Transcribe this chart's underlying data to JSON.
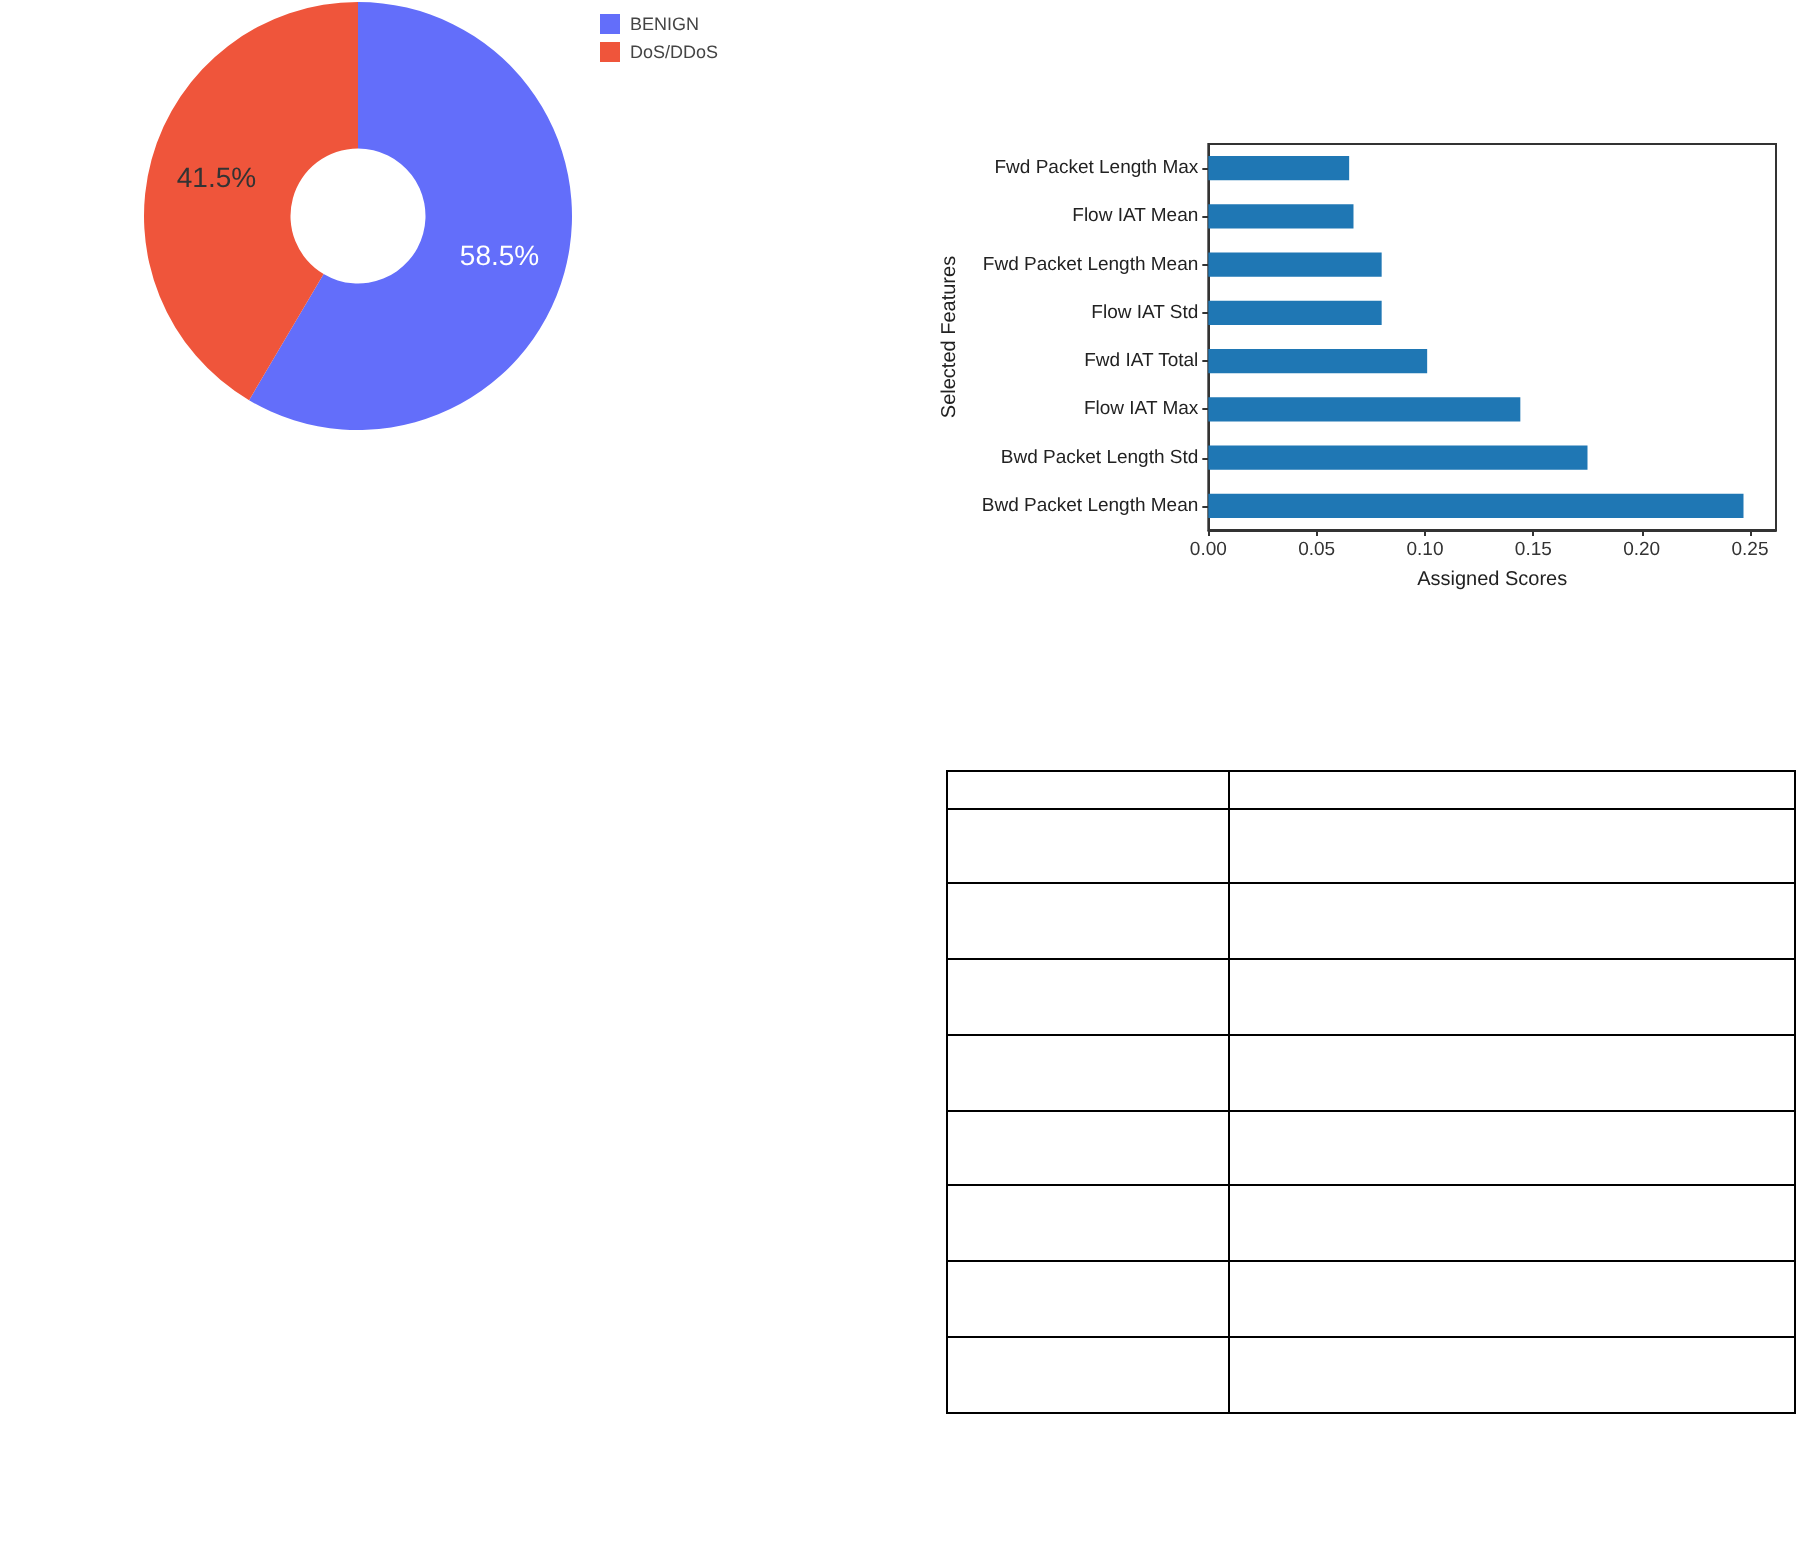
{
  "chart_data": [
    {
      "type": "donut",
      "categories": [
        "BENIGN",
        "DoS/DDoS"
      ],
      "values": [
        58.5,
        41.5
      ],
      "colors": [
        "#636efa",
        "#ef553b"
      ],
      "value_labels": [
        "58.5%",
        "41.5%"
      ],
      "legend": "top right"
    },
    {
      "type": "bar",
      "orientation": "horizontal",
      "xlabel": "Assigned Scores",
      "ylabel": "Selected Features",
      "categories": [
        "Fwd Packet Length Max",
        "Flow IAT Mean",
        "Fwd Packet Length Mean",
        "Flow IAT Std",
        "Fwd IAT Total",
        "Flow IAT Max",
        "Bwd Packet Length Std",
        "Bwd Packet Length Mean"
      ],
      "values": [
        0.065,
        0.067,
        0.08,
        0.08,
        0.101,
        0.144,
        0.175,
        0.247
      ],
      "color": "#1f77b4",
      "xlim": [
        0,
        0.262
      ],
      "xticks": [
        {
          "value": 0,
          "label": "0.00"
        },
        {
          "value": 0.05,
          "label": "0.05"
        },
        {
          "value": 0.1,
          "label": "0.10"
        },
        {
          "value": 0.15,
          "label": "0.15"
        },
        {
          "value": 0.2,
          "label": "0.20"
        },
        {
          "value": 0.25,
          "label": "0.25"
        }
      ],
      "grid": false
    }
  ]
}
